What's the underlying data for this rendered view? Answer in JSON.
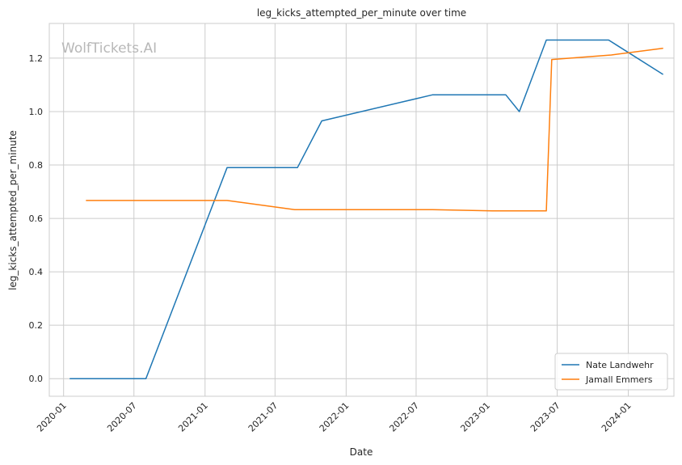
{
  "chart_data": {
    "type": "line",
    "title": "leg_kicks_attempted_per_minute over time",
    "xlabel": "Date",
    "ylabel": "leg_kicks_attempted_per_minute",
    "watermark": "WolfTickets.AI",
    "xlim": [
      "2019-11-25",
      "2024-04-28"
    ],
    "ylim": [
      -0.066,
      1.33
    ],
    "x_ticks": [
      "2020-01",
      "2020-07",
      "2021-01",
      "2021-07",
      "2022-01",
      "2022-07",
      "2023-01",
      "2023-07",
      "2024-01"
    ],
    "x_tick_dates": [
      "2020-01-01",
      "2020-07-01",
      "2021-01-01",
      "2021-07-01",
      "2022-01-01",
      "2022-07-01",
      "2023-01-01",
      "2023-07-01",
      "2024-01-01"
    ],
    "y_ticks": [
      "0.0",
      "0.2",
      "0.4",
      "0.6",
      "0.8",
      "1.0",
      "1.2"
    ],
    "y_tick_values": [
      0.0,
      0.2,
      0.4,
      0.6,
      0.8,
      1.0,
      1.2
    ],
    "grid": true,
    "legend_position": "bottom-right",
    "series": [
      {
        "name": "Nate Landwehr",
        "color": "#1f77b4",
        "points": [
          [
            "2020-01-18",
            0.0
          ],
          [
            "2020-08-01",
            0.0
          ],
          [
            "2021-02-27",
            0.79
          ],
          [
            "2021-08-28",
            0.79
          ],
          [
            "2021-10-30",
            0.965
          ],
          [
            "2022-08-13",
            1.063
          ],
          [
            "2023-02-18",
            1.063
          ],
          [
            "2023-03-25",
            1.0
          ],
          [
            "2023-06-03",
            1.268
          ],
          [
            "2023-11-11",
            1.268
          ],
          [
            "2024-03-30",
            1.14
          ]
        ]
      },
      {
        "name": "Jamall Emmers",
        "color": "#ff7f0e",
        "points": [
          [
            "2020-02-29",
            0.667
          ],
          [
            "2021-02-27",
            0.667
          ],
          [
            "2021-08-21",
            0.633
          ],
          [
            "2022-08-13",
            0.633
          ],
          [
            "2023-01-14",
            0.628
          ],
          [
            "2023-06-03",
            0.628
          ],
          [
            "2023-06-17",
            1.195
          ],
          [
            "2023-11-18",
            1.212
          ],
          [
            "2024-03-30",
            1.237
          ]
        ]
      }
    ]
  }
}
